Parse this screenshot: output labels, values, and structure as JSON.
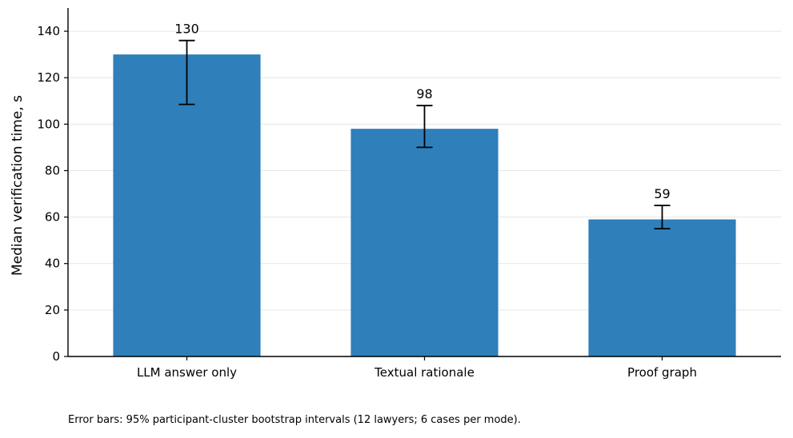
{
  "chart_data": {
    "type": "bar",
    "categories": [
      "LLM answer only",
      "Textual rationale",
      "Proof graph"
    ],
    "values": [
      130,
      98,
      59
    ],
    "error_bars": [
      {
        "low": 108.5,
        "high": 136
      },
      {
        "low": 90,
        "high": 108
      },
      {
        "low": 55,
        "high": 65
      }
    ],
    "data_labels": [
      "130",
      "98",
      "59"
    ],
    "ylabel": "Median verification time, s",
    "xlabel": "",
    "ylim": [
      0,
      150
    ],
    "yticks": [
      0,
      20,
      40,
      60,
      80,
      100,
      120,
      140
    ],
    "grid": "horizontal",
    "bar_color": "#2e7fba",
    "grid_color": "#e6e6e6"
  },
  "footnote": "Error bars: 95% participant-cluster bootstrap intervals (12 lawyers; 6 cases per mode)."
}
